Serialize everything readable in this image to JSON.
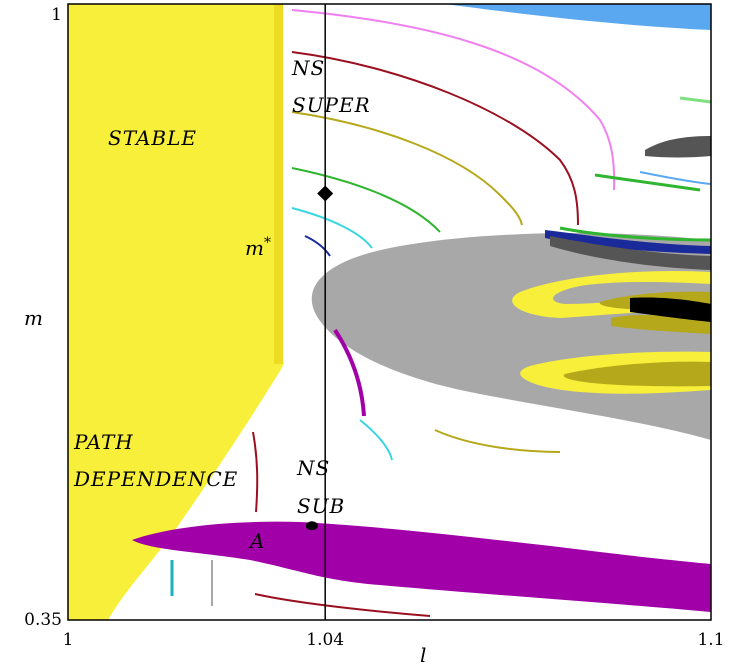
{
  "chart_data": {
    "type": "heatmap",
    "title": "",
    "xlabel": "l",
    "ylabel": "m",
    "xlim": [
      1,
      1.1
    ],
    "ylim": [
      0.35,
      1
    ],
    "x_ticks": [
      {
        "value": 1,
        "label": "1"
      },
      {
        "value": 1.04,
        "label": "1.04"
      },
      {
        "value": 1.1,
        "label": "1.1"
      }
    ],
    "y_ticks": [
      {
        "value": 0.35,
        "label": "0.35"
      },
      {
        "value": 1,
        "label": "1"
      }
    ],
    "grid": false,
    "boundary_line": {
      "l": 1.04,
      "color": "#000000"
    },
    "regions": [
      {
        "label": "STABLE",
        "color": "#f7ef3a"
      },
      {
        "label": "PATH DEPENDENCE",
        "color": "#f7ef3a"
      },
      {
        "label": "NS SUPER",
        "color": "#ffffff"
      },
      {
        "label": "NS SUB",
        "color": "#ffffff"
      }
    ],
    "points": [
      {
        "label": "m*",
        "l": 1.04,
        "m": 0.8,
        "marker": "diamond"
      },
      {
        "label": "A",
        "l": 1.0398,
        "m": 0.4495,
        "marker": "circle"
      }
    ],
    "colors": {
      "stable": "#f7ef3a",
      "gray": "#a8a8a8",
      "purple": "#a100a8",
      "olive": "#b5a81a",
      "blue": "#5aa9f0",
      "darkred": "#9a1020",
      "pink": "#f07ff0",
      "green": "#2fb52f",
      "cyan": "#39d6e0",
      "navy": "#1a2a9a",
      "black": "#000000",
      "darkgray": "#555555"
    }
  }
}
